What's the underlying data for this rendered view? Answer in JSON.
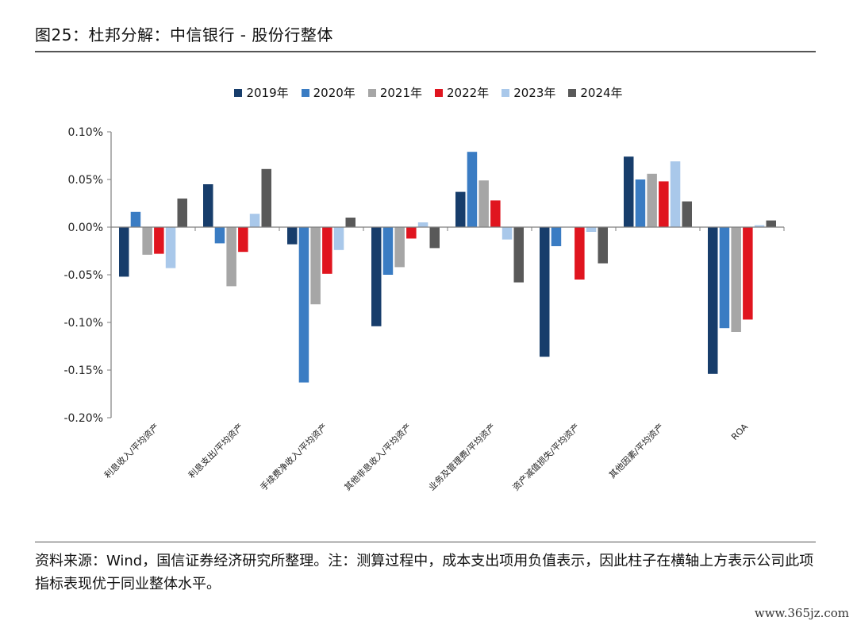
{
  "title": "图25：杜邦分解：中信银行 - 股份行整体",
  "source_note": "资料来源：Wind，国信证券经济研究所整理。注：测算过程中，成本支出项用负值表示，因此柱子在横轴上方表示公司此项指标表现优于同业整体水平。",
  "watermark": "www.365jz.com",
  "colors": {
    "2019年": "#173d6b",
    "2020年": "#3a7cc3",
    "2021年": "#a6a6a6",
    "2022年": "#e0151f",
    "2023年": "#a9c8ea",
    "2024年": "#595959"
  },
  "chart_data": {
    "type": "bar",
    "title": "",
    "xlabel": "",
    "ylabel": "",
    "ylim": [
      -0.2,
      0.1
    ],
    "y_ticks": [
      "0.10%",
      "0.05%",
      "0.00%",
      "-0.05%",
      "-0.10%",
      "-0.15%",
      "-0.20%"
    ],
    "y_tick_values": [
      0.1,
      0.05,
      0,
      -0.05,
      -0.1,
      -0.15,
      -0.2
    ],
    "y_unit": "%",
    "grid": false,
    "legend_position": "top",
    "categories": [
      "利息收入/平均资产",
      "利息支出/平均资产",
      "手续费净收入/平均资产",
      "其他非息收入/平均资产",
      "业务及管理费/平均资产",
      "资产减值损失/平均资产",
      "其他因素/平均资产",
      "ROA"
    ],
    "series": [
      {
        "name": "2019年",
        "values": [
          -0.052,
          0.045,
          -0.018,
          -0.104,
          0.037,
          -0.136,
          0.074,
          -0.154
        ]
      },
      {
        "name": "2020年",
        "values": [
          0.016,
          -0.017,
          -0.163,
          -0.05,
          0.079,
          -0.02,
          0.05,
          -0.106
        ]
      },
      {
        "name": "2021年",
        "values": [
          -0.029,
          -0.062,
          -0.081,
          -0.042,
          0.049,
          0.0,
          0.056,
          -0.11
        ]
      },
      {
        "name": "2022年",
        "values": [
          -0.028,
          -0.026,
          -0.049,
          -0.012,
          0.028,
          -0.055,
          0.048,
          -0.097
        ]
      },
      {
        "name": "2023年",
        "values": [
          -0.043,
          0.014,
          -0.024,
          0.005,
          -0.013,
          -0.005,
          0.069,
          0.002
        ]
      },
      {
        "name": "2024年",
        "values": [
          0.03,
          0.061,
          0.01,
          -0.022,
          -0.058,
          -0.038,
          0.027,
          0.007
        ]
      }
    ]
  }
}
